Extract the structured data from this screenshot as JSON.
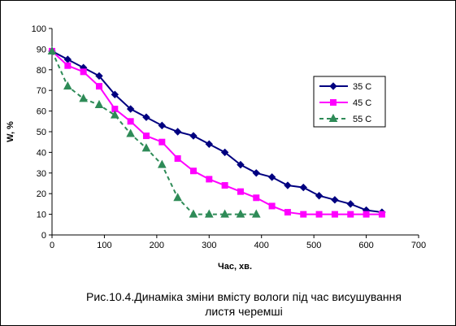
{
  "chart_data": {
    "type": "line",
    "title": "",
    "xlabel": "Час, хв.",
    "ylabel": "W, %",
    "xlim": [
      0,
      700
    ],
    "ylim": [
      0,
      100
    ],
    "x_ticks": [
      "0",
      "100",
      "200",
      "300",
      "400",
      "500",
      "600",
      "700"
    ],
    "y_ticks": [
      "0",
      "10",
      "20",
      "30",
      "40",
      "50",
      "60",
      "70",
      "80",
      "90",
      "100"
    ],
    "grid": false,
    "legend_position": "right",
    "series": [
      {
        "name": "35 C",
        "color": "#000080",
        "marker": "diamond",
        "dash": "solid",
        "x": [
          0,
          30,
          60,
          90,
          120,
          150,
          180,
          210,
          240,
          270,
          300,
          330,
          360,
          390,
          420,
          450,
          480,
          510,
          540,
          570,
          600,
          630
        ],
        "y": [
          89,
          85,
          81,
          77,
          68,
          61,
          57,
          53,
          50,
          48,
          44,
          40,
          34,
          30,
          28,
          24,
          23,
          19,
          17,
          15,
          12,
          11
        ]
      },
      {
        "name": "45 C",
        "color": "#ff00ff",
        "marker": "square",
        "dash": "solid",
        "x": [
          0,
          30,
          60,
          90,
          120,
          150,
          180,
          210,
          240,
          270,
          300,
          330,
          360,
          390,
          420,
          450,
          480,
          510,
          540,
          570,
          600,
          630
        ],
        "y": [
          89,
          82,
          79,
          72,
          61,
          55,
          48,
          45,
          37,
          31,
          27,
          24,
          21,
          18,
          14,
          11,
          10,
          10,
          10,
          10,
          10,
          10
        ]
      },
      {
        "name": "55 C",
        "color": "#2e8b57",
        "marker": "triangle",
        "dash": "dashed",
        "x": [
          0,
          30,
          60,
          90,
          120,
          150,
          180,
          210,
          240,
          270,
          300,
          330,
          360,
          390
        ],
        "y": [
          89,
          72,
          66,
          63,
          58,
          49,
          42,
          34,
          18,
          10,
          10,
          10,
          10,
          10
        ]
      }
    ]
  },
  "caption": {
    "line1": "Рис.10.4.Динаміка зміни вмісту вологи під час висушування",
    "line2": "листя черемші"
  }
}
